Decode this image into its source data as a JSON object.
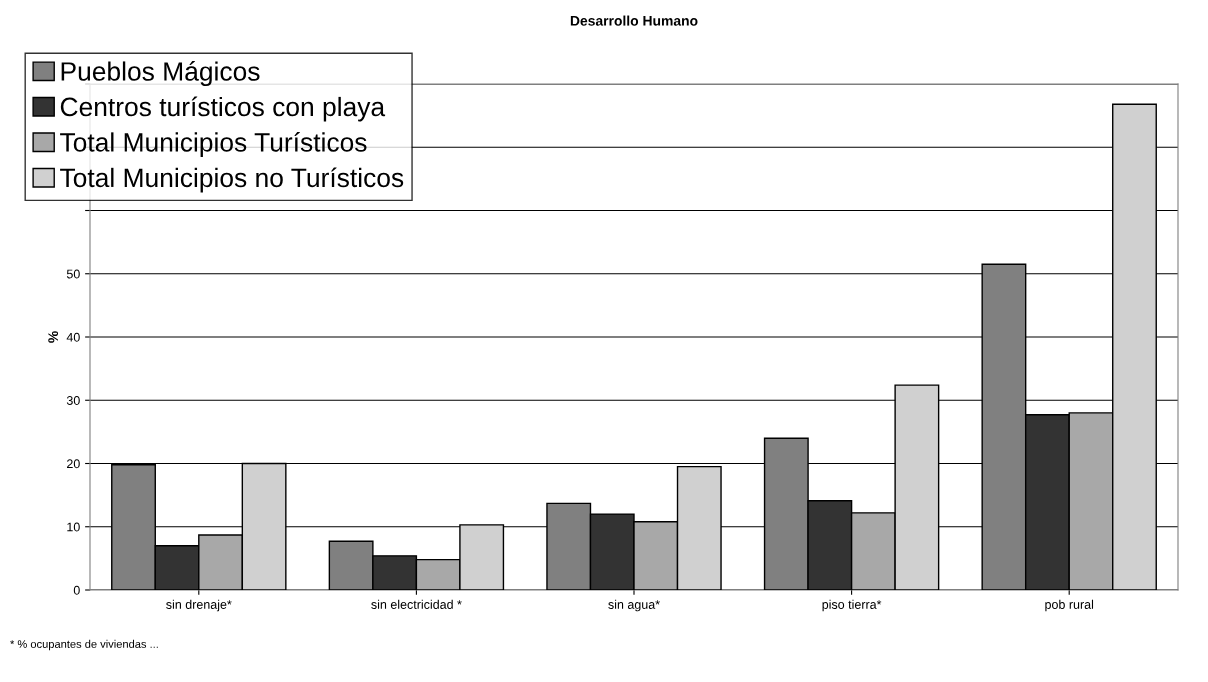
{
  "chart_data": {
    "type": "bar",
    "title": "Desarrollo Humano",
    "ylabel": "%",
    "categories": [
      "sin drenaje*",
      "sin electricidad *",
      "sin agua*",
      "piso tierra*",
      "pob rural"
    ],
    "series": [
      {
        "name": "Pueblos Mágicos",
        "color": "#808080",
        "values": [
          19.8,
          7.7,
          13.7,
          24.0,
          51.5
        ]
      },
      {
        "name": "Centros turísticos con playa",
        "color": "#333333",
        "values": [
          7.0,
          5.4,
          12.0,
          14.1,
          27.7
        ]
      },
      {
        "name": "Total Municipios Turísticos",
        "color": "#a8a8a8",
        "values": [
          8.7,
          4.8,
          10.8,
          12.2,
          28.0
        ]
      },
      {
        "name": "Total Municipios no Turísticos",
        "color": "#d0d0d0",
        "values": [
          20.0,
          10.3,
          19.5,
          32.4,
          76.8
        ]
      }
    ],
    "ylim": [
      0,
      80
    ],
    "yticks": [
      0,
      10,
      20,
      30,
      40,
      50,
      {
        "value": 60,
        "label": null
      },
      {
        "value": 70,
        "label": null
      },
      {
        "value": 80,
        "label": null
      }
    ],
    "grid": "y",
    "legend": "top left",
    "annotations": [
      "* % ocupantes de viviendas ..."
    ]
  }
}
